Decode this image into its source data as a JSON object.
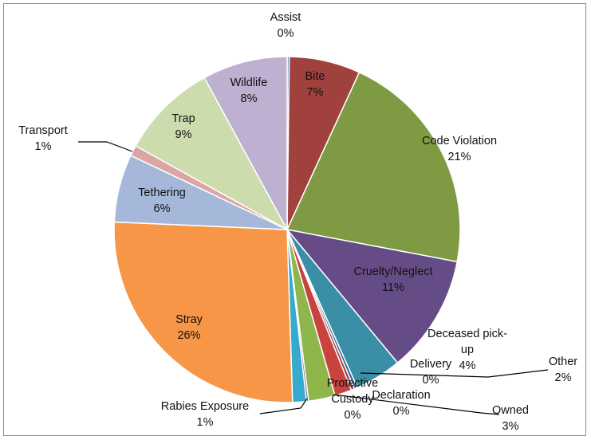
{
  "chart_data": {
    "type": "pie",
    "title": "",
    "start": "top",
    "direction": "clockwise",
    "slices": [
      {
        "name": "Assist",
        "pct_label": "0%",
        "value": 0.2,
        "color": "#4F81BD"
      },
      {
        "name": "Bite",
        "pct_label": "7%",
        "value": 6.7,
        "color": "#A0413E"
      },
      {
        "name": "Code Violation",
        "pct_label": "21%",
        "value": 21.3,
        "color": "#7E9B44"
      },
      {
        "name": "Cruelty/Neglect",
        "pct_label": "11%",
        "value": 11.1,
        "color": "#664C86"
      },
      {
        "name": "Deceased pick-up",
        "pct_label": "4%",
        "value": 4.4,
        "color": "#3A8EA6"
      },
      {
        "name": "Declaration",
        "pct_label": "0%",
        "value": 0.3,
        "color": "#3366A0"
      },
      {
        "name": "Delivery",
        "pct_label": "0%",
        "value": 0.3,
        "color": "#A13A3A"
      },
      {
        "name": "Other",
        "pct_label": "2%",
        "value": 1.6,
        "color": "#C8433E"
      },
      {
        "name": "Owned",
        "pct_label": "3%",
        "value": 2.5,
        "color": "#8FB64A"
      },
      {
        "name": "Protective Custody",
        "pct_label": "0%",
        "value": 0.2,
        "color": "#7957A2"
      },
      {
        "name": "Rabies Exposure",
        "pct_label": "1%",
        "value": 1.3,
        "color": "#35AACD"
      },
      {
        "name": "Stray",
        "pct_label": "26%",
        "value": 26.4,
        "color": "#F79646"
      },
      {
        "name": "Tethering",
        "pct_label": "6%",
        "value": 6.4,
        "color": "#A5B8DA"
      },
      {
        "name": "Transport",
        "pct_label": "1%",
        "value": 1.0,
        "color": "#DBA5A4"
      },
      {
        "name": "Trap",
        "pct_label": "9%",
        "value": 9.1,
        "color": "#CDDCAC"
      },
      {
        "name": "Wildlife",
        "pct_label": "8%",
        "value": 8.0,
        "color": "#BDB0D0"
      }
    ]
  }
}
